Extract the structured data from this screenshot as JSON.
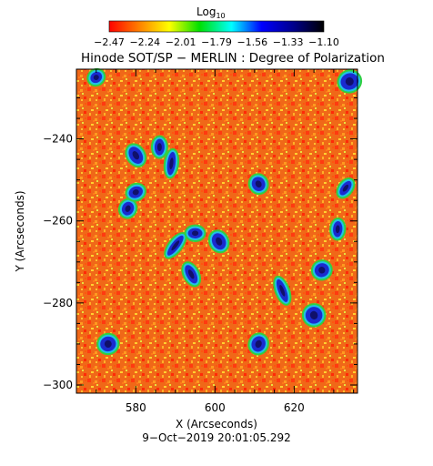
{
  "colorbar": {
    "label_main": "Log",
    "label_sub": "10",
    "ticks": [
      "−2.47",
      "−2.24",
      "−2.01",
      "−1.79",
      "−1.56",
      "−1.33",
      "−1.10"
    ],
    "range": [
      -2.47,
      -1.1
    ],
    "colormap": [
      "#ff0000",
      "#ff8000",
      "#ffff00",
      "#00e000",
      "#00ffff",
      "#0000ff",
      "#00008a",
      "#000000"
    ]
  },
  "chart_data": {
    "type": "heatmap",
    "title": "Hinode SOT/SP − MERLIN : Degree of Polarization",
    "xlabel": "X (Arcseconds)",
    "ylabel": "Y (Arcseconds)",
    "xlim": [
      565,
      636
    ],
    "ylim": [
      -302,
      -223
    ],
    "x_ticks": [
      580,
      600,
      620
    ],
    "x_tick_labels": [
      "580",
      "600",
      "620"
    ],
    "y_ticks": [
      -240,
      -260,
      -280,
      -300
    ],
    "y_tick_labels": [
      "−240",
      "−260",
      "−280",
      "−300"
    ],
    "value_range": [
      -2.47,
      -1.1
    ],
    "colorbar_label": "Log10",
    "grid": false,
    "background_level": "mostly red/orange with scattered yellow-green speckle",
    "strong_polarization_patches": [
      {
        "x": 580,
        "y": -244
      },
      {
        "x": 586,
        "y": -242
      },
      {
        "x": 589,
        "y": -246
      },
      {
        "x": 578,
        "y": -257
      },
      {
        "x": 595,
        "y": -263
      },
      {
        "x": 594,
        "y": -273
      },
      {
        "x": 601,
        "y": -265
      },
      {
        "x": 590,
        "y": -266
      },
      {
        "x": 633,
        "y": -252
      },
      {
        "x": 631,
        "y": -262
      },
      {
        "x": 627,
        "y": -272
      },
      {
        "x": 634,
        "y": -226
      },
      {
        "x": 611,
        "y": -251
      },
      {
        "x": 573,
        "y": -290
      },
      {
        "x": 617,
        "y": -277
      },
      {
        "x": 625,
        "y": -283
      },
      {
        "x": 611,
        "y": -290
      },
      {
        "x": 580,
        "y": -253
      },
      {
        "x": 570,
        "y": -225
      }
    ]
  },
  "footer": {
    "timestamp": "9−Oct−2019 20:01:05.292"
  }
}
